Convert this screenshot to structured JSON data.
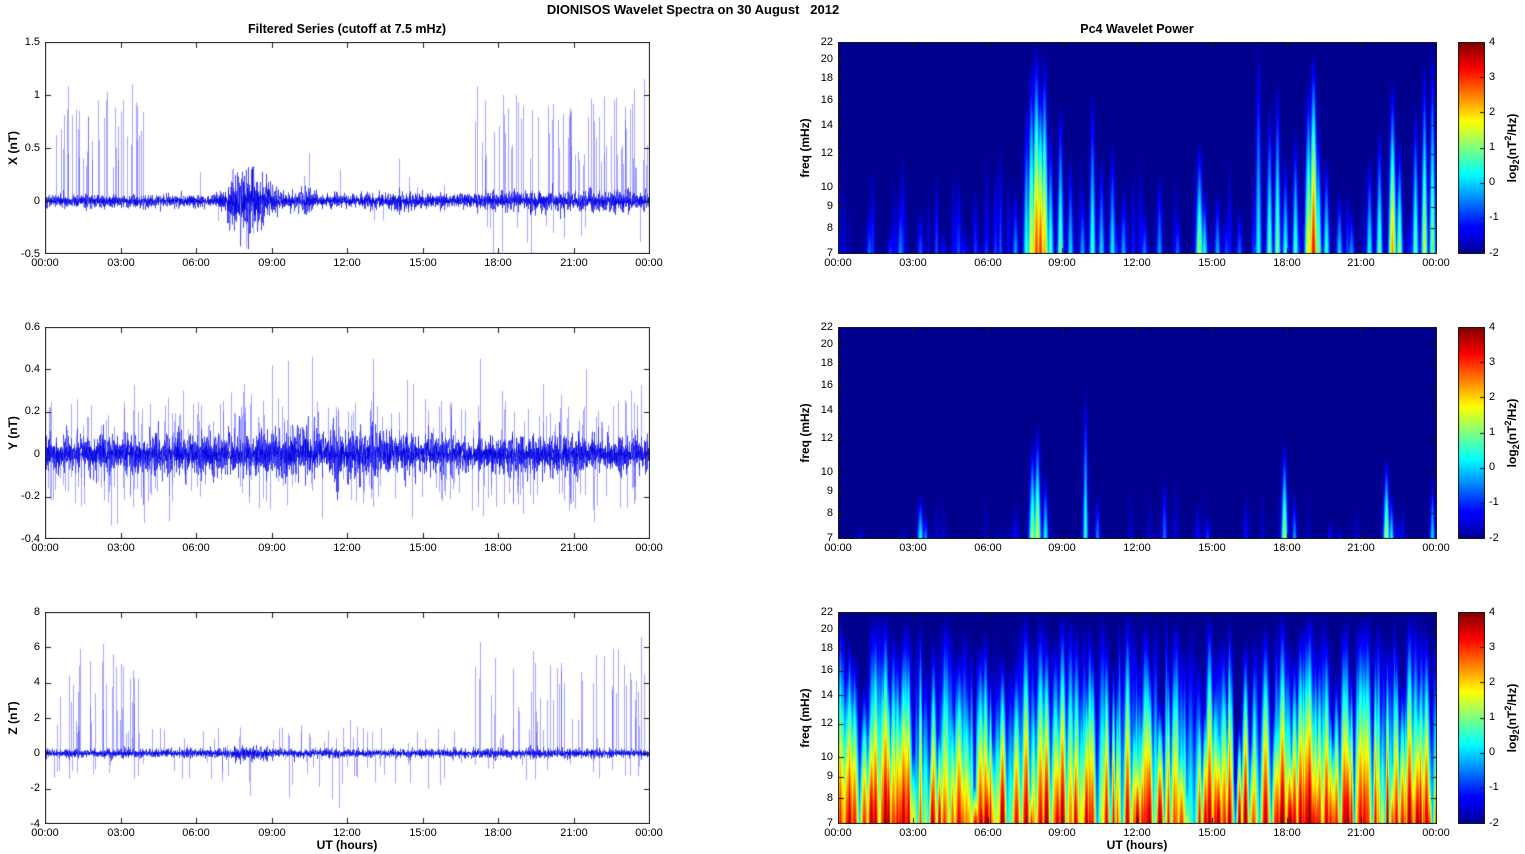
{
  "figure": {
    "title": "DIONISOS Wavelet Spectra on 30 August   2012",
    "background": "#ffffff"
  },
  "time_axis": {
    "label": "UT (hours)",
    "tick_labels": [
      "00:00",
      "03:00",
      "06:00",
      "09:00",
      "12:00",
      "15:00",
      "18:00",
      "21:00",
      "00:00"
    ],
    "tick_hours": [
      0,
      3,
      6,
      9,
      12,
      15,
      18,
      21,
      24
    ],
    "range_hours": [
      0,
      24
    ]
  },
  "colorbar": {
    "clim": [
      -2,
      4
    ],
    "tick_values": [
      4,
      3,
      2,
      1,
      0,
      -1,
      -2
    ],
    "tick_labels": [
      "4",
      "3",
      "2",
      "1",
      "0",
      "-1",
      "-2"
    ],
    "label_text": "log2(nT^2/Hz)",
    "label_parts": {
      "pre": "log",
      "sub": "2",
      "mid": "(nT",
      "sup": "2",
      "post": "/Hz)"
    },
    "colormap": "jet"
  },
  "chart_data": [
    {
      "id": "x-filtered-series",
      "type": "line",
      "title": "Filtered Series (cutoff at 7.5 mHz)",
      "ylabel": "X (nT)",
      "ylim": [
        -0.5,
        1.5
      ],
      "ytick_values": [
        1.5,
        1,
        0.5,
        0,
        -0.5
      ],
      "ytick_labels": [
        "1.5",
        "1",
        "0.5",
        "0",
        "-0.5"
      ],
      "line_color": "#0000ff",
      "grid": false,
      "noise": {
        "seed": 101,
        "base_sigma": 0.032,
        "bumps": [
          [
            8.1,
            0.5,
            4.5
          ],
          [
            7.5,
            0.35,
            2.5
          ],
          [
            8.7,
            0.45,
            2.1
          ],
          [
            10.45,
            0.2,
            2.2
          ],
          [
            14.0,
            0.25,
            1.8
          ],
          [
            20.5,
            3.5,
            1.6
          ]
        ]
      },
      "spike_windows": [
        [
          0.25,
          3.9,
          30,
          0.3,
          0.95,
          1
        ],
        [
          17.0,
          23.95,
          60,
          0.3,
          1.0,
          1
        ],
        [
          17.3,
          23.9,
          12,
          0.2,
          0.5,
          -1
        ],
        [
          4.2,
          16.8,
          14,
          0.12,
          0.32,
          0
        ]
      ],
      "notable_spikes": [
        [
          0.45,
          0.62
        ],
        [
          0.9,
          1.08
        ],
        [
          1.35,
          0.85
        ],
        [
          1.7,
          0.8
        ],
        [
          2.1,
          0.95
        ],
        [
          2.45,
          1.03
        ],
        [
          2.8,
          0.88
        ],
        [
          3.1,
          0.95
        ],
        [
          3.45,
          1.1
        ],
        [
          3.6,
          0.93
        ],
        [
          8.0,
          -0.45
        ],
        [
          10.5,
          0.45
        ],
        [
          14.05,
          0.4
        ],
        [
          17.15,
          1.08
        ],
        [
          17.5,
          0.95
        ],
        [
          18.2,
          1.0
        ],
        [
          19.0,
          0.9
        ],
        [
          19.3,
          -0.5
        ],
        [
          20.9,
          0.85
        ],
        [
          21.8,
          0.75
        ],
        [
          22.6,
          0.95
        ],
        [
          23.4,
          1.05
        ],
        [
          23.8,
          1.15
        ]
      ]
    },
    {
      "id": "x-wavelet-power",
      "type": "heatmap",
      "title": "Pc4 Wavelet Power",
      "ylabel": "freq (mHz)",
      "yscale": "log",
      "ylim": [
        7,
        22
      ],
      "ytick_values": [
        22,
        20,
        18,
        16,
        14,
        12,
        10,
        9,
        8,
        7
      ],
      "ytick_labels": [
        "22",
        "20",
        "18",
        "16",
        "14",
        "12",
        "10",
        "9",
        "8",
        "7"
      ],
      "clim": [
        -2,
        4
      ],
      "background_value": -2,
      "colormap": "jet",
      "events": [
        [
          1.25,
          9,
          -0.6,
          1
        ],
        [
          2.1,
          8,
          -0.9,
          1
        ],
        [
          2.5,
          10,
          -0.4,
          1
        ],
        [
          3.3,
          9,
          -0.7,
          1
        ],
        [
          4.2,
          8,
          -1.1,
          0.8
        ],
        [
          5.0,
          8,
          -1.0,
          0.8
        ],
        [
          6.3,
          9,
          -0.8,
          0.8
        ],
        [
          7.1,
          10,
          -0.3,
          1
        ],
        [
          7.55,
          16,
          0.6,
          1
        ],
        [
          7.75,
          20,
          1.8,
          1.2
        ],
        [
          7.95,
          22,
          2.9,
          1.4
        ],
        [
          8.1,
          18,
          3.1,
          1.2
        ],
        [
          8.25,
          21,
          2.3,
          1.2
        ],
        [
          8.5,
          14,
          0.8,
          1
        ],
        [
          8.9,
          16,
          1.0,
          1
        ],
        [
          9.3,
          12,
          0.1,
          1
        ],
        [
          9.8,
          10,
          -0.2,
          1
        ],
        [
          10.2,
          17,
          0.7,
          1
        ],
        [
          10.55,
          12,
          0.1,
          1
        ],
        [
          11.0,
          13,
          0.3,
          1
        ],
        [
          11.45,
          10,
          -0.2,
          1
        ],
        [
          12.3,
          9,
          -0.5,
          1
        ],
        [
          12.9,
          11,
          -0.3,
          1
        ],
        [
          13.6,
          9,
          -0.6,
          1
        ],
        [
          14.5,
          13,
          1.3,
          1.2
        ],
        [
          14.7,
          10,
          0.4,
          1
        ],
        [
          15.2,
          10,
          -0.2,
          1
        ],
        [
          16.1,
          9,
          -0.6,
          1
        ],
        [
          16.85,
          22,
          0.4,
          1
        ],
        [
          17.3,
          16,
          0.9,
          1
        ],
        [
          17.6,
          18,
          1.1,
          1
        ],
        [
          17.95,
          12,
          0.5,
          1
        ],
        [
          18.35,
          14,
          0.7,
          1
        ],
        [
          18.85,
          18,
          2.0,
          1.2
        ],
        [
          19.05,
          21,
          3.3,
          1.3
        ],
        [
          19.25,
          14,
          1.1,
          1
        ],
        [
          19.6,
          12,
          0.6,
          1
        ],
        [
          20.1,
          10,
          0.1,
          1
        ],
        [
          20.6,
          9,
          -0.3,
          1
        ],
        [
          21.3,
          12,
          0.4,
          1
        ],
        [
          21.7,
          14,
          0.9,
          1
        ],
        [
          22.25,
          18,
          2.4,
          1.2
        ],
        [
          22.5,
          13,
          1.3,
          1
        ],
        [
          23.15,
          16,
          0.9,
          1
        ],
        [
          23.5,
          20,
          1.6,
          1
        ],
        [
          23.85,
          22,
          1.2,
          1
        ]
      ],
      "random_streaks": {
        "seed": 41,
        "count": 60,
        "fmax": [
          7.5,
          13
        ],
        "peak": [
          -1.8,
          -0.7
        ],
        "width": [
          0.6,
          1.1
        ]
      }
    },
    {
      "id": "y-filtered-series",
      "type": "line",
      "title": "",
      "ylabel": "Y (nT)",
      "ylim": [
        -0.4,
        0.6
      ],
      "ytick_values": [
        0.6,
        0.4,
        0.2,
        0,
        -0.2,
        -0.4
      ],
      "ytick_labels": [
        "0.6",
        "0.4",
        "0.2",
        "0",
        "-0.2",
        "-0.4"
      ],
      "line_color": "#0000ff",
      "grid": false,
      "noise": {
        "seed": 202,
        "base_sigma": 0.045,
        "bumps": [
          [
            9.5,
            2.5,
            1.25
          ],
          [
            13.0,
            2.0,
            1.2
          ],
          [
            21.0,
            1.5,
            1.15
          ]
        ]
      },
      "spike_windows": [
        [
          0.05,
          23.95,
          260,
          0.1,
          0.26,
          0
        ],
        [
          0.05,
          23.95,
          40,
          0.18,
          0.34,
          0
        ]
      ],
      "notable_spikes": [
        [
          2.85,
          -0.33
        ],
        [
          5.5,
          0.3
        ],
        [
          7.9,
          0.33
        ],
        [
          9.0,
          0.42
        ],
        [
          9.65,
          0.44
        ],
        [
          10.6,
          0.46
        ],
        [
          11.0,
          -0.3
        ],
        [
          13.05,
          0.45
        ],
        [
          14.4,
          0.35
        ],
        [
          14.6,
          -0.3
        ],
        [
          17.3,
          0.45
        ],
        [
          19.0,
          -0.28
        ],
        [
          19.8,
          0.33
        ],
        [
          21.5,
          0.4
        ],
        [
          21.8,
          -0.32
        ],
        [
          23.3,
          0.3
        ]
      ]
    },
    {
      "id": "y-wavelet-power",
      "type": "heatmap",
      "title": "",
      "ylabel": "freq (mHz)",
      "yscale": "log",
      "ylim": [
        7,
        22
      ],
      "ytick_values": [
        22,
        20,
        18,
        16,
        14,
        12,
        10,
        9,
        8,
        7
      ],
      "ytick_labels": [
        "22",
        "20",
        "18",
        "16",
        "14",
        "12",
        "10",
        "9",
        "8",
        "7"
      ],
      "clim": [
        -2,
        4
      ],
      "background_value": -2,
      "colormap": "jet",
      "events": [
        [
          3.3,
          9,
          0.3,
          1
        ],
        [
          3.5,
          8,
          -0.4,
          0.8
        ],
        [
          7.8,
          12,
          1.3,
          1.1
        ],
        [
          8.0,
          13,
          1.6,
          1.1
        ],
        [
          8.3,
          10,
          0.4,
          0.9
        ],
        [
          9.9,
          16,
          0.6,
          0.8
        ],
        [
          10.4,
          9,
          -0.4,
          0.8
        ],
        [
          13.1,
          10,
          -0.5,
          0.8
        ],
        [
          14.8,
          8,
          -0.9,
          0.8
        ],
        [
          17.9,
          12,
          1.3,
          1
        ],
        [
          18.3,
          9,
          -0.3,
          0.8
        ],
        [
          22.0,
          11,
          1.4,
          1
        ],
        [
          22.2,
          9,
          0.3,
          0.8
        ],
        [
          23.85,
          10,
          0.1,
          0.8
        ]
      ],
      "random_streaks": {
        "seed": 42,
        "count": 28,
        "fmax": [
          7.4,
          10
        ],
        "peak": [
          -1.8,
          -1.1
        ],
        "width": [
          0.6,
          1.0
        ]
      }
    },
    {
      "id": "z-filtered-series",
      "type": "line",
      "title": "",
      "ylabel": "Z (nT)",
      "ylim": [
        -4,
        8
      ],
      "ytick_values": [
        8,
        6,
        4,
        2,
        0,
        -2,
        -4
      ],
      "ytick_labels": [
        "8",
        "6",
        "4",
        "2",
        "0",
        "-2",
        "-4"
      ],
      "line_color": "#0000ff",
      "grid": false,
      "noise": {
        "seed": 303,
        "base_sigma": 0.12,
        "bumps": [
          [
            8.1,
            0.6,
            1.8
          ],
          [
            11.5,
            0.4,
            1.4
          ],
          [
            20.0,
            3.0,
            1.2
          ]
        ]
      },
      "spike_windows": [
        [
          0.2,
          3.9,
          30,
          0.8,
          5.5,
          1
        ],
        [
          0.3,
          3.9,
          14,
          0.3,
          1.5,
          -1
        ],
        [
          4.2,
          16.8,
          40,
          0.35,
          1.6,
          1
        ],
        [
          4.2,
          16.8,
          32,
          0.3,
          1.8,
          -1
        ],
        [
          17.0,
          23.95,
          45,
          0.8,
          6.0,
          1
        ],
        [
          17.0,
          23.95,
          20,
          0.3,
          1.5,
          -1
        ]
      ],
      "notable_spikes": [
        [
          0.6,
          3.2
        ],
        [
          0.95,
          4.4
        ],
        [
          1.4,
          5.9
        ],
        [
          1.8,
          5.2
        ],
        [
          2.3,
          6.2
        ],
        [
          2.7,
          5.6
        ],
        [
          3.1,
          4.9
        ],
        [
          3.5,
          4.7
        ],
        [
          8.15,
          -2.4
        ],
        [
          9.3,
          1.4
        ],
        [
          9.7,
          -2.5
        ],
        [
          10.9,
          -1.9
        ],
        [
          11.4,
          -2.6
        ],
        [
          11.7,
          -3.1
        ],
        [
          12.1,
          1.9
        ],
        [
          13.9,
          -1.7
        ],
        [
          15.2,
          -2.0
        ],
        [
          15.7,
          -1.8
        ],
        [
          17.3,
          6.3
        ],
        [
          17.9,
          5.4
        ],
        [
          18.6,
          4.8
        ],
        [
          19.4,
          5.8
        ],
        [
          20.5,
          5.1
        ],
        [
          21.3,
          4.6
        ],
        [
          22.2,
          5.5
        ],
        [
          23.0,
          5.0
        ],
        [
          23.7,
          6.6
        ]
      ]
    },
    {
      "id": "z-wavelet-power",
      "type": "heatmap",
      "title": "",
      "ylabel": "freq (mHz)",
      "yscale": "log",
      "ylim": [
        7,
        22
      ],
      "ytick_values": [
        22,
        20,
        18,
        16,
        14,
        12,
        10,
        9,
        8,
        7
      ],
      "ytick_labels": [
        "22",
        "20",
        "18",
        "16",
        "14",
        "12",
        "10",
        "9",
        "8",
        "7"
      ],
      "clim": [
        -2,
        4
      ],
      "background_value": -2,
      "colormap": "jet",
      "events": [
        [
          0.5,
          18,
          3.2,
          1.4
        ],
        [
          1.9,
          22,
          4.0,
          1.5
        ],
        [
          2.6,
          20,
          3.8,
          1.4
        ],
        [
          3.8,
          19,
          3.3,
          1.3
        ],
        [
          5.9,
          20,
          3.3,
          1.3
        ],
        [
          7.5,
          22,
          3.5,
          1.4
        ],
        [
          9.0,
          22,
          3.9,
          1.5
        ],
        [
          10.2,
          19,
          3.2,
          1.3
        ],
        [
          11.6,
          22,
          3.6,
          1.4
        ],
        [
          12.4,
          20,
          3.4,
          1.3
        ],
        [
          14.9,
          22,
          3.8,
          1.5
        ],
        [
          15.5,
          18,
          3.2,
          1.3
        ],
        [
          17.8,
          22,
          4.0,
          1.6
        ],
        [
          18.9,
          22,
          4.1,
          1.6
        ],
        [
          19.6,
          20,
          3.6,
          1.4
        ],
        [
          20.3,
          20,
          3.7,
          1.4
        ],
        [
          21.1,
          20,
          3.5,
          1.3
        ],
        [
          22.9,
          22,
          3.9,
          1.5
        ],
        [
          23.6,
          20,
          3.6,
          1.4
        ]
      ],
      "random_streaks": {
        "seed": 43,
        "count": 320,
        "fmax": [
          8,
          22
        ],
        "fmax_pow": 0.6,
        "peak": [
          -1.2,
          4.0
        ],
        "peak_pow": 0.75,
        "width": [
          0.7,
          1.8
        ]
      }
    }
  ]
}
